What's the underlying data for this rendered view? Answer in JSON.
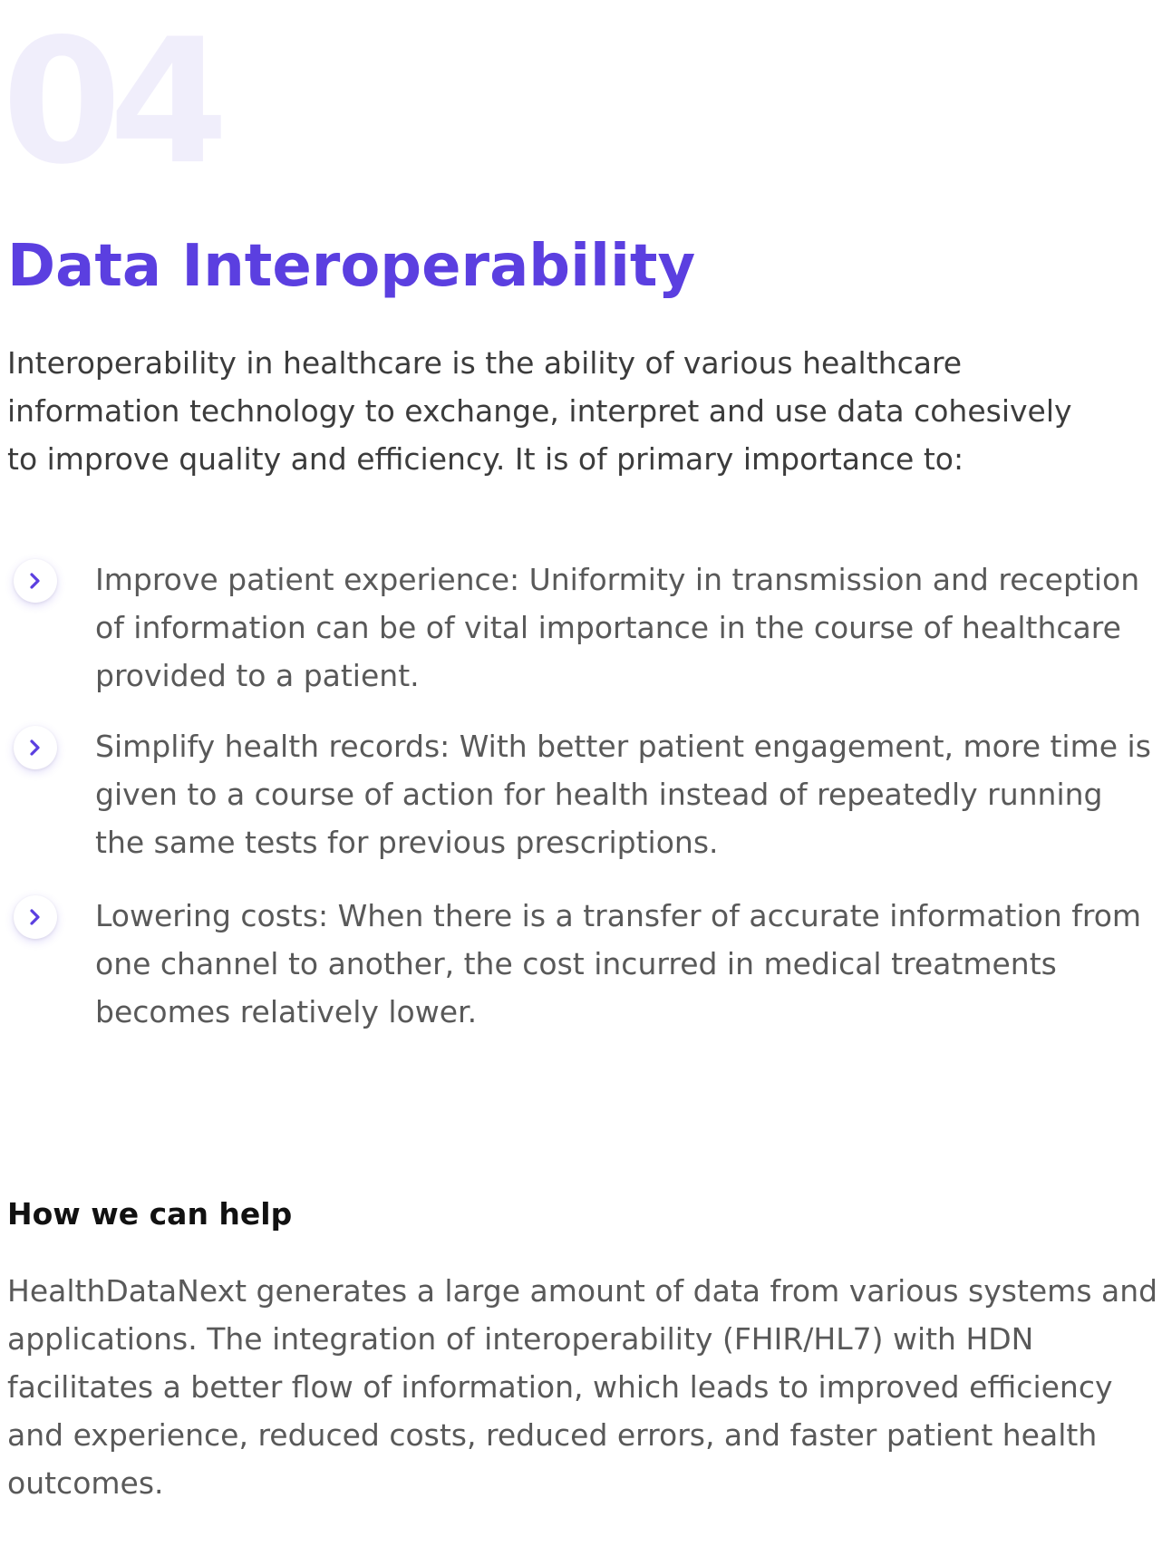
{
  "section": {
    "number": "04",
    "title": "Data Interoperability",
    "intro": "Interoperability in healthcare is the ability of various healthcare information technology to exchange, interpret and use data cohesively to improve quality and efficiency. It is of primary importance to:"
  },
  "benefits": [
    {
      "icon": "chevron-right-icon",
      "text": "Improve patient experience: Uniformity in transmission and reception of information can be of vital importance in the course of healthcare provided to a patient."
    },
    {
      "icon": "chevron-right-icon",
      "text": "Simplify health records: With better patient engagement, more time is given to a course of action for health instead of repeatedly running the same tests for previous prescriptions."
    },
    {
      "icon": "chevron-right-icon",
      "text": "Lowering costs: When there is a transfer of accurate information from one channel to another, the cost incurred in medical treatments becomes relatively lower."
    }
  ],
  "help": {
    "heading": "How we can help",
    "body": "HealthDataNext generates a large amount of data from various systems and applications. The integration of interoperability (FHIR/HL7) with HDN facilitates a better flow of information, which leads to improved efficiency and experience, reduced costs, reduced errors, and faster patient health outcomes."
  },
  "colors": {
    "accent": "#5b3fe0",
    "number_tint": "#f0eefb",
    "body_text": "#595959",
    "heading_text": "#111111"
  }
}
